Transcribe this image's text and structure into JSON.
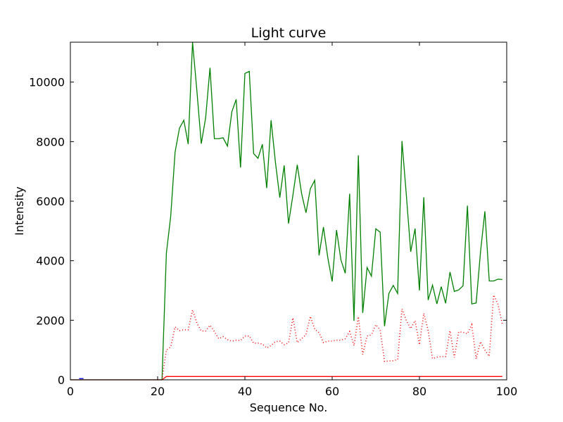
{
  "chart_data": {
    "type": "line",
    "title": "Light curve",
    "xlabel": "Sequence No.",
    "ylabel": "Intensity",
    "xlim": [
      0,
      100
    ],
    "ylim": [
      0,
      11340
    ],
    "xticks": [
      0,
      20,
      40,
      60,
      80,
      100
    ],
    "yticks": [
      0,
      2000,
      4000,
      6000,
      8000,
      10000
    ],
    "grid": false,
    "series": [
      {
        "name": "green-solid",
        "color": "#008000",
        "style": "solid",
        "x_start": 0,
        "values": [
          0,
          0,
          0,
          0,
          0,
          0,
          0,
          0,
          0,
          0,
          0,
          0,
          0,
          0,
          0,
          0,
          0,
          0,
          0,
          0,
          0,
          0,
          4250,
          5500,
          7650,
          8450,
          8720,
          7920,
          11340,
          9700,
          7930,
          8800,
          10480,
          8100,
          8100,
          8130,
          7850,
          9000,
          9420,
          7130,
          10290,
          10360,
          7600,
          7440,
          7910,
          6440,
          8720,
          7300,
          6120,
          7200,
          5250,
          6200,
          7220,
          6250,
          5610,
          6420,
          6700,
          4180,
          5130,
          4100,
          3300,
          5030,
          4030,
          3580,
          6250,
          1980,
          7540,
          2250,
          3770,
          3480,
          5070,
          4960,
          1800,
          2900,
          3170,
          2900,
          8020,
          6200,
          4300,
          5080,
          3000,
          6130,
          2680,
          3180,
          2550,
          3130,
          2570,
          3620,
          2970,
          3020,
          3160,
          5850,
          2550,
          2580,
          4300,
          5660,
          3320,
          3320,
          3380,
          3370
        ]
      },
      {
        "name": "red-dotted",
        "color": "#ff0000",
        "style": "dotted",
        "x_start": 21,
        "values": [
          0,
          1000,
          1100,
          1780,
          1650,
          1680,
          1680,
          2350,
          1900,
          1640,
          1640,
          1830,
          1620,
          1380,
          1450,
          1350,
          1300,
          1330,
          1320,
          1470,
          1470,
          1230,
          1230,
          1200,
          1070,
          1150,
          1280,
          1300,
          1180,
          1240,
          2080,
          1250,
          1380,
          1520,
          2130,
          1700,
          1580,
          1250,
          1300,
          1300,
          1330,
          1330,
          1380,
          1620,
          1150,
          2120,
          850,
          1470,
          1510,
          1850,
          1680,
          620,
          630,
          640,
          680,
          2380,
          1990,
          1720,
          1990,
          1180,
          2240,
          1650,
          710,
          760,
          780,
          780,
          1650,
          750,
          1610,
          1600,
          1550,
          1850,
          700,
          1280,
          1000,
          790,
          2850,
          2540,
          1870
        ]
      },
      {
        "name": "red-solid",
        "color": "#ff0000",
        "style": "solid",
        "x_start": 0,
        "values": [
          0,
          0,
          0,
          0,
          0,
          0,
          0,
          0,
          0,
          0,
          0,
          0,
          0,
          0,
          0,
          0,
          0,
          0,
          0,
          0,
          0,
          0,
          110,
          110,
          110,
          110,
          110,
          110,
          110,
          110,
          110,
          110,
          110,
          110,
          110,
          110,
          110,
          110,
          110,
          110,
          110,
          110,
          110,
          110,
          110,
          110,
          110,
          110,
          110,
          110,
          110,
          110,
          110,
          110,
          110,
          110,
          110,
          110,
          110,
          110,
          110,
          110,
          110,
          110,
          110,
          110,
          110,
          110,
          110,
          110,
          110,
          110,
          110,
          110,
          110,
          110,
          110,
          110,
          110,
          110,
          110,
          110,
          110,
          110,
          110,
          110,
          110,
          110,
          110,
          110,
          110,
          110,
          110,
          110,
          110,
          110,
          110,
          110,
          110,
          110
        ]
      },
      {
        "name": "blue-solid",
        "color": "#0000ff",
        "style": "solid",
        "x_start": 2,
        "values": [
          40,
          40
        ]
      }
    ]
  }
}
